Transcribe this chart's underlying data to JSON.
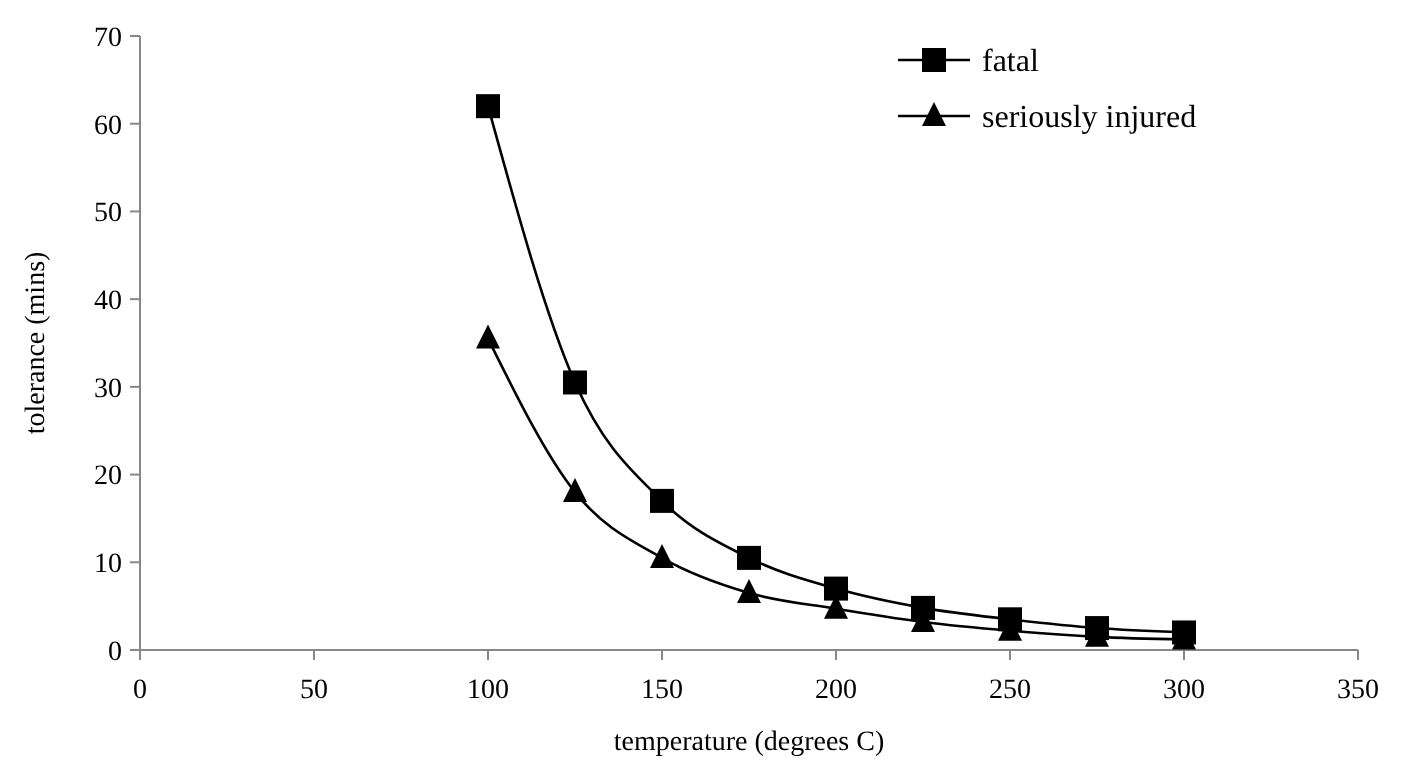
{
  "chart_data": {
    "type": "line",
    "xlabel": "temperature (degrees C)",
    "ylabel": "tolerance (mins)",
    "x": [
      100,
      125,
      150,
      175,
      200,
      225,
      250,
      275,
      300
    ],
    "series": [
      {
        "name": "fatal",
        "color": "#000000",
        "marker": "square",
        "values": [
          62,
          30.5,
          17,
          10.5,
          7,
          4.8,
          3.5,
          2.5,
          2
        ]
      },
      {
        "name": "seriously injured",
        "color": "#000000",
        "marker": "triangle",
        "values": [
          35.5,
          18,
          10.5,
          6.5,
          4.7,
          3.2,
          2.2,
          1.5,
          1.2
        ]
      }
    ],
    "xlim": [
      0,
      350
    ],
    "xticks": [
      0,
      50,
      100,
      150,
      200,
      250,
      300,
      350
    ],
    "ylim": [
      0,
      70
    ],
    "yticks": [
      0,
      10,
      20,
      30,
      40,
      50,
      60,
      70
    ],
    "grid": false,
    "legend": "top right",
    "line_style": "solid"
  }
}
